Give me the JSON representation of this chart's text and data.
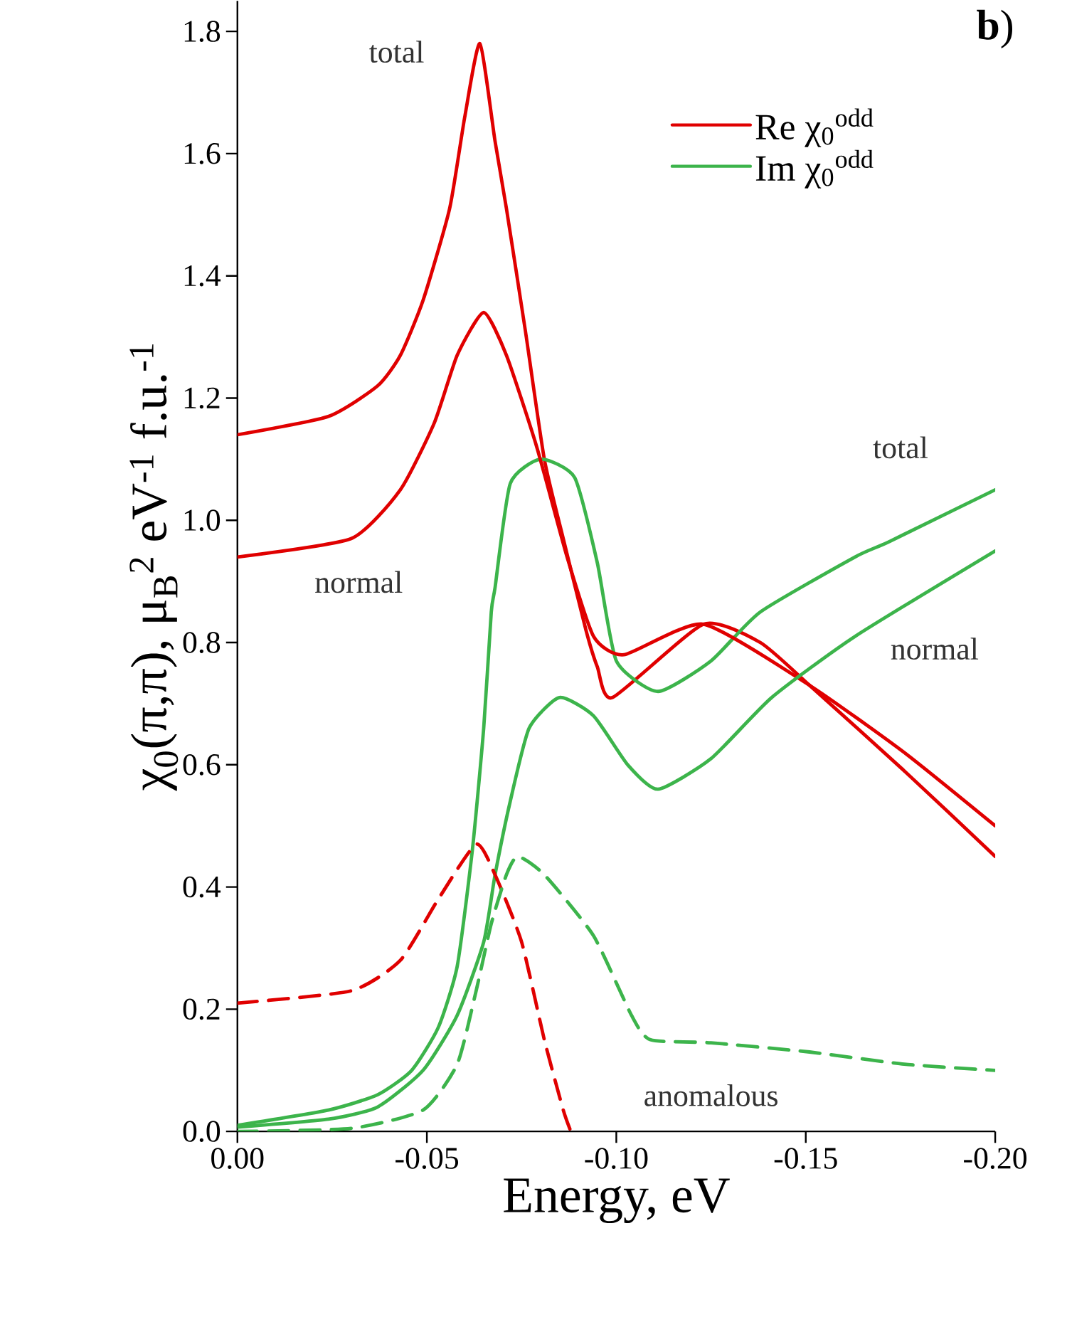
{
  "chart_data": {
    "type": "line",
    "xlabel": "Energy, eV",
    "ylabel": "χ$_{0}$(π,π), μ$_{B}$$^{2}$ eV$^{-1}$ f.u.$^{-1}$",
    "xlim": [
      0,
      -0.2
    ],
    "ylim": [
      0,
      1.85
    ],
    "xticks": [
      {
        "value": 0,
        "label": "0.00"
      },
      {
        "value": -0.05,
        "label": "-0.05"
      },
      {
        "value": -0.1,
        "label": "-0.10"
      },
      {
        "value": -0.15,
        "label": "-0.15"
      },
      {
        "value": -0.2,
        "label": "-0.20"
      }
    ],
    "yticks": [
      {
        "value": 0,
        "label": "0.0"
      },
      {
        "value": 0.2,
        "label": "0.2"
      },
      {
        "value": 0.4,
        "label": "0.4"
      },
      {
        "value": 0.6,
        "label": "0.6"
      },
      {
        "value": 0.8,
        "label": "0.8"
      },
      {
        "value": 1.0,
        "label": "1.0"
      },
      {
        "value": 1.2,
        "label": "1.2"
      },
      {
        "value": 1.4,
        "label": "1.4"
      },
      {
        "value": 1.6,
        "label": "1.6"
      },
      {
        "value": 1.8,
        "label": "1.8"
      }
    ],
    "legend": "top right",
    "series": [
      {
        "name": "Re χ$_{0}$$^{odd}$",
        "color": "#e00000",
        "line_style": "solid",
        "x": [
          0,
          -0.024,
          -0.037,
          -0.043,
          -0.049,
          -0.056,
          -0.06,
          -0.064,
          -0.068,
          -0.071,
          -0.076,
          -0.081,
          -0.086,
          -0.092,
          -0.095,
          -0.099,
          -0.123,
          -0.138,
          -0.151,
          -0.176,
          -0.2
        ],
        "values": [
          1.14,
          1.17,
          1.22,
          1.27,
          1.36,
          1.51,
          1.66,
          1.78,
          1.62,
          1.51,
          1.31,
          1.1,
          0.97,
          0.82,
          0.76,
          0.71,
          0.83,
          0.8,
          0.73,
          0.59,
          0.45
        ]
      },
      {
        "name": "Im χ$_{0}$$^{odd}$",
        "color": "#3cb44b",
        "line_style": "solid",
        "x": [
          0,
          -0.024,
          -0.037,
          -0.046,
          -0.053,
          -0.058,
          -0.062,
          -0.065,
          -0.067,
          -0.068,
          -0.072,
          -0.08,
          -0.089,
          -0.095,
          -0.1,
          -0.111,
          -0.125,
          -0.138,
          -0.163,
          -0.172,
          -0.2
        ],
        "values": [
          0.01,
          0.035,
          0.06,
          0.1,
          0.17,
          0.27,
          0.46,
          0.66,
          0.85,
          0.89,
          1.06,
          1.1,
          1.07,
          0.93,
          0.77,
          0.72,
          0.77,
          0.85,
          0.94,
          0.965,
          1.05
        ]
      },
      {
        "color": "#e00000",
        "line_style": "solid",
        "x": [
          0,
          -0.03,
          -0.043,
          -0.052,
          -0.058,
          -0.065,
          -0.071,
          -0.079,
          -0.087,
          -0.094,
          -0.102,
          -0.123,
          -0.151,
          -0.176,
          -0.2
        ],
        "values": [
          0.94,
          0.97,
          1.05,
          1.16,
          1.27,
          1.34,
          1.27,
          1.12,
          0.94,
          0.81,
          0.78,
          0.83,
          0.73,
          0.62,
          0.5
        ]
      },
      {
        "color": "#3cb44b",
        "line_style": "solid",
        "x": [
          0,
          -0.024,
          -0.037,
          -0.049,
          -0.058,
          -0.065,
          -0.068,
          -0.072,
          -0.077,
          -0.085,
          -0.094,
          -0.103,
          -0.111,
          -0.125,
          -0.141,
          -0.163,
          -0.2
        ],
        "values": [
          0.007,
          0.02,
          0.04,
          0.1,
          0.19,
          0.31,
          0.42,
          0.54,
          0.66,
          0.71,
          0.68,
          0.6,
          0.56,
          0.61,
          0.71,
          0.81,
          0.95
        ]
      },
      {
        "color": "#e00000",
        "line_style": "dashed",
        "x": [
          0,
          -0.03,
          -0.043,
          -0.053,
          -0.063,
          -0.068,
          -0.075,
          -0.081,
          -0.086,
          -0.088
        ],
        "values": [
          0.21,
          0.23,
          0.28,
          0.38,
          0.47,
          0.42,
          0.31,
          0.15,
          0.035,
          0
        ]
      },
      {
        "color": "#3cb44b",
        "line_style": "dashed",
        "x": [
          0,
          -0.03,
          -0.049,
          -0.058,
          -0.063,
          -0.067,
          -0.071,
          -0.074,
          -0.081,
          -0.094,
          -0.104,
          -0.109,
          -0.125,
          -0.151,
          -0.176,
          -0.2
        ],
        "values": [
          0,
          0.005,
          0.035,
          0.11,
          0.23,
          0.34,
          0.42,
          0.45,
          0.42,
          0.32,
          0.19,
          0.15,
          0.145,
          0.13,
          0.11,
          0.1
        ]
      }
    ],
    "annotations": [
      "total",
      "normal",
      "total",
      "normal",
      "anomalous",
      "**b**)"
    ]
  }
}
